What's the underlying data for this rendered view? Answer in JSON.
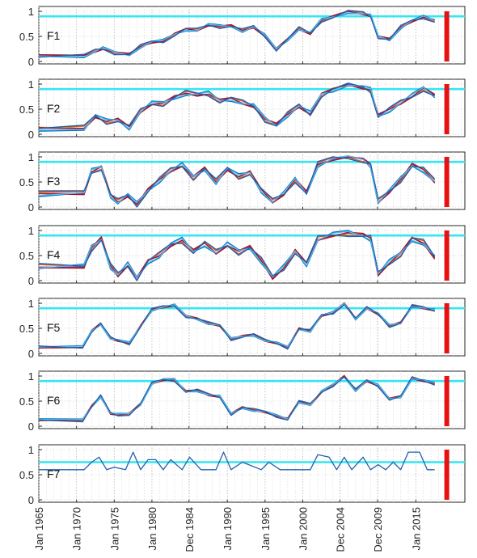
{
  "chart_data": {
    "type": "line",
    "x_tick_labels": [
      "Jan 1965",
      "Jan 1970",
      "Jan 1975",
      "Jan 1980",
      "Dec 1984",
      "Jan 1990",
      "Jan 1995",
      "Jan 2000",
      "Dec 2004",
      "Dec 2009",
      "Jan 2015"
    ],
    "x_tick_years": [
      1965,
      1970,
      1975,
      1980,
      1984.92,
      1990,
      1995,
      2000,
      2004.92,
      2009.92,
      2015
    ],
    "xlim": [
      1965,
      2021.5
    ],
    "ylim": [
      0,
      1
    ],
    "y_tick_labels": [
      "0",
      "0.5",
      "1"
    ],
    "grid": true,
    "series_colors": [
      "#0072BD",
      "#D95319",
      "#EDB120",
      "#7E2F8E",
      "#A2142F",
      "#4DBEEE",
      "#2060B0"
    ],
    "threshold_color": "#33E6F2",
    "marker_color": "#E81010",
    "marker_year": 2019.1,
    "panels": [
      {
        "label": "F1",
        "threshold": 0.9,
        "series_count": 7,
        "spread": 0.045,
        "phase": 0.3,
        "x": [
          1965,
          1971,
          1972.5,
          1973.5,
          1975,
          1977,
          1978.5,
          1980,
          1981.5,
          1983,
          1984.5,
          1986,
          1987.5,
          1989,
          1990.5,
          1992,
          1993.5,
          1995,
          1996.5,
          1998,
          1999.5,
          2001,
          2002.5,
          2004,
          2006,
          2008,
          2009,
          2010,
          2011.5,
          2013,
          2014.5,
          2016,
          2017.5
        ],
        "y": [
          0.12,
          0.12,
          0.2,
          0.25,
          0.18,
          0.15,
          0.3,
          0.38,
          0.4,
          0.55,
          0.65,
          0.62,
          0.72,
          0.7,
          0.72,
          0.62,
          0.68,
          0.5,
          0.25,
          0.45,
          0.65,
          0.55,
          0.82,
          0.9,
          1.0,
          0.95,
          0.9,
          0.5,
          0.45,
          0.68,
          0.8,
          0.88,
          0.82
        ]
      },
      {
        "label": "F2",
        "threshold": 0.9,
        "series_count": 7,
        "spread": 0.065,
        "phase": 1.1,
        "x": [
          1965,
          1971,
          1972.5,
          1974,
          1975.5,
          1977,
          1978.5,
          1980,
          1981.5,
          1983,
          1984.5,
          1986,
          1987.5,
          1989,
          1990.5,
          1992,
          1993.5,
          1995,
          1996.5,
          1998,
          1999.5,
          2001,
          2002.5,
          2004,
          2006,
          2008,
          2009,
          2010,
          2011.5,
          2013,
          2014.5,
          2016,
          2017.5
        ],
        "y": [
          0.12,
          0.12,
          0.35,
          0.25,
          0.3,
          0.15,
          0.45,
          0.6,
          0.62,
          0.75,
          0.82,
          0.78,
          0.8,
          0.68,
          0.72,
          0.62,
          0.55,
          0.3,
          0.2,
          0.4,
          0.55,
          0.4,
          0.8,
          0.9,
          1.0,
          0.92,
          0.88,
          0.38,
          0.5,
          0.62,
          0.75,
          0.92,
          0.78
        ]
      },
      {
        "label": "F3",
        "threshold": 0.9,
        "series_count": 7,
        "spread": 0.07,
        "phase": 2.0,
        "x": [
          1965,
          1971,
          1972,
          1973.3,
          1974.5,
          1975.5,
          1976.8,
          1978,
          1979.5,
          1981,
          1982.5,
          1984,
          1985.5,
          1987,
          1988.5,
          1990,
          1991.5,
          1993,
          1994.5,
          1996,
          1997.5,
          1999,
          2000.5,
          2002,
          2004,
          2006,
          2008,
          2009,
          2010,
          2011.5,
          2013,
          2014.5,
          2016,
          2017.5
        ],
        "y": [
          0.27,
          0.27,
          0.7,
          0.8,
          0.25,
          0.1,
          0.22,
          0.05,
          0.35,
          0.55,
          0.72,
          0.82,
          0.6,
          0.78,
          0.5,
          0.75,
          0.6,
          0.7,
          0.35,
          0.1,
          0.25,
          0.55,
          0.3,
          0.85,
          0.95,
          1.0,
          0.95,
          0.85,
          0.1,
          0.3,
          0.55,
          0.85,
          0.75,
          0.5
        ]
      },
      {
        "label": "F4",
        "threshold": 0.9,
        "series_count": 7,
        "spread": 0.075,
        "phase": 2.7,
        "x": [
          1965,
          1971,
          1972,
          1973.3,
          1974.5,
          1975.5,
          1976.8,
          1978,
          1979.5,
          1981,
          1982.5,
          1984,
          1985.5,
          1987,
          1988.5,
          1990,
          1991.5,
          1993,
          1994.5,
          1996,
          1997.5,
          1999,
          2000.5,
          2002,
          2004,
          2006,
          2008,
          2009,
          2010,
          2011.5,
          2013,
          2014.5,
          2016,
          2017.5
        ],
        "y": [
          0.27,
          0.27,
          0.65,
          0.85,
          0.3,
          0.1,
          0.3,
          0.05,
          0.4,
          0.5,
          0.7,
          0.8,
          0.6,
          0.75,
          0.55,
          0.7,
          0.58,
          0.68,
          0.4,
          0.05,
          0.25,
          0.6,
          0.35,
          0.82,
          0.9,
          0.95,
          0.92,
          0.85,
          0.12,
          0.35,
          0.55,
          0.85,
          0.75,
          0.45
        ]
      },
      {
        "label": "F5",
        "threshold": 0.9,
        "series_count": 7,
        "spread": 0.035,
        "phase": 3.4,
        "x": [
          1965,
          1970.8,
          1972,
          1973.2,
          1974.5,
          1975.5,
          1977,
          1978.5,
          1980,
          1981.5,
          1983,
          1984.5,
          1986,
          1987.5,
          1989,
          1990.5,
          1992,
          1993.5,
          1995,
          1996.5,
          1998,
          1999.5,
          2001,
          2002.5,
          2004,
          2005.5,
          2007,
          2008.5,
          2010,
          2011.5,
          2013,
          2014.5,
          2016,
          2017.5
        ],
        "y": [
          0.12,
          0.12,
          0.45,
          0.6,
          0.3,
          0.25,
          0.2,
          0.55,
          0.88,
          0.92,
          0.95,
          0.75,
          0.7,
          0.6,
          0.55,
          0.28,
          0.35,
          0.38,
          0.25,
          0.2,
          0.12,
          0.5,
          0.45,
          0.75,
          0.8,
          1.0,
          0.7,
          0.9,
          0.78,
          0.55,
          0.62,
          0.95,
          0.9,
          0.85
        ]
      },
      {
        "label": "F6",
        "threshold": 0.9,
        "series_count": 7,
        "spread": 0.035,
        "phase": 4.2,
        "x": [
          1965,
          1970.8,
          1972,
          1973.2,
          1974.5,
          1975.5,
          1977,
          1978.5,
          1980,
          1981.5,
          1983,
          1984.5,
          1986,
          1987.5,
          1989,
          1990.5,
          1992,
          1993.5,
          1995,
          1996.5,
          1998,
          1999.5,
          2001,
          2002.5,
          2004,
          2005.5,
          2007,
          2008.5,
          2010,
          2011.5,
          2013,
          2014.5,
          2016,
          2017.5
        ],
        "y": [
          0.12,
          0.12,
          0.4,
          0.6,
          0.25,
          0.22,
          0.25,
          0.45,
          0.85,
          0.92,
          0.92,
          0.7,
          0.72,
          0.62,
          0.58,
          0.25,
          0.38,
          0.32,
          0.28,
          0.2,
          0.15,
          0.5,
          0.42,
          0.68,
          0.82,
          1.0,
          0.72,
          0.9,
          0.8,
          0.55,
          0.6,
          0.95,
          0.9,
          0.85
        ]
      },
      {
        "label": "F7",
        "threshold": 0.75,
        "series_count": 1,
        "spread": 0.0,
        "phase": 0.0,
        "x": [
          1965,
          1971,
          1972,
          1973,
          1974,
          1975,
          1976.5,
          1977.5,
          1978.5,
          1979.5,
          1980.5,
          1981.5,
          1982.5,
          1984,
          1985,
          1986.5,
          1988.5,
          1989.5,
          1990.5,
          1992,
          1994.5,
          1995.5,
          1997,
          2001,
          2002,
          2003.5,
          2004.5,
          2005.5,
          2006.5,
          2008,
          2009,
          2010,
          2011,
          2012,
          2013,
          2014,
          2015.5,
          2016.5,
          2017.5
        ],
        "y": [
          0.6,
          0.6,
          0.75,
          0.85,
          0.6,
          0.65,
          0.6,
          0.95,
          0.6,
          0.8,
          0.8,
          0.6,
          0.8,
          0.6,
          0.85,
          0.6,
          0.6,
          0.95,
          0.6,
          0.75,
          0.6,
          0.75,
          0.6,
          0.6,
          0.9,
          0.85,
          0.6,
          0.85,
          0.6,
          0.85,
          0.6,
          0.7,
          0.6,
          0.75,
          0.6,
          0.95,
          0.95,
          0.6,
          0.6
        ]
      }
    ]
  }
}
